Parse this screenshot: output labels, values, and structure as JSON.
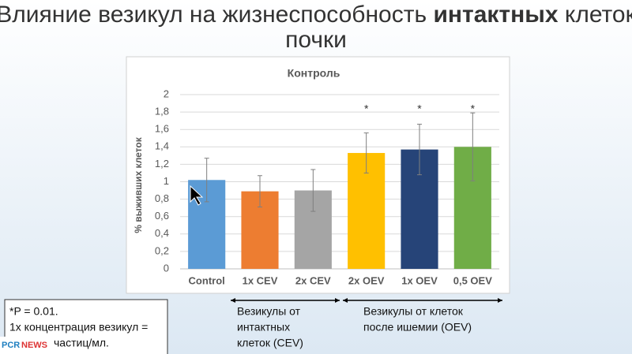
{
  "slide_title": {
    "parts": [
      "Влияние везикул на жизнеспособность ",
      "интактных",
      " клеток"
    ],
    "line2": "почки"
  },
  "chart_data": {
    "type": "bar",
    "title": "Контроль",
    "y_label": "% выживших клеток",
    "categories": [
      "Control",
      "1x CEV",
      "2x CEV",
      "2x OEV",
      "1x OEV",
      "0,5 OEV"
    ],
    "values": [
      1.02,
      0.89,
      0.9,
      1.33,
      1.37,
      1.4
    ],
    "errors": [
      0.25,
      0.18,
      0.24,
      0.23,
      0.29,
      0.39
    ],
    "significance": [
      null,
      null,
      null,
      "*",
      "*",
      "*"
    ],
    "colors": [
      "#5b9bd5",
      "#ed7d31",
      "#a5a5a5",
      "#ffc000",
      "#264478",
      "#70ad47"
    ],
    "ylim": [
      0,
      2
    ],
    "yticks": [
      0,
      {
        "value": 0.2,
        "label": "0,2"
      },
      {
        "value": 0.4,
        "label": "0,4"
      },
      {
        "value": 0.6,
        "label": "0,6"
      },
      {
        "value": 0.8,
        "label": "0,8"
      },
      1,
      {
        "value": 1.2,
        "label": "1,2"
      },
      {
        "value": 1.4,
        "label": "1,4"
      },
      {
        "value": 1.6,
        "label": "1,6"
      },
      {
        "value": 1.8,
        "label": "1,8"
      },
      2
    ],
    "grid": true
  },
  "groups": [
    {
      "lines": [
        "Везикулы от",
        "интактных",
        "клеток (CEV)"
      ]
    },
    {
      "lines": [
        "Везикулы от клеток",
        "после ишемии (OEV)"
      ]
    }
  ],
  "note": {
    "lines": [
      "*P = 0.01.",
      "1x концентрация везикул =",
      "частиц/мл."
    ]
  },
  "logo": {
    "left": "PCR",
    "right": "NEWS"
  }
}
